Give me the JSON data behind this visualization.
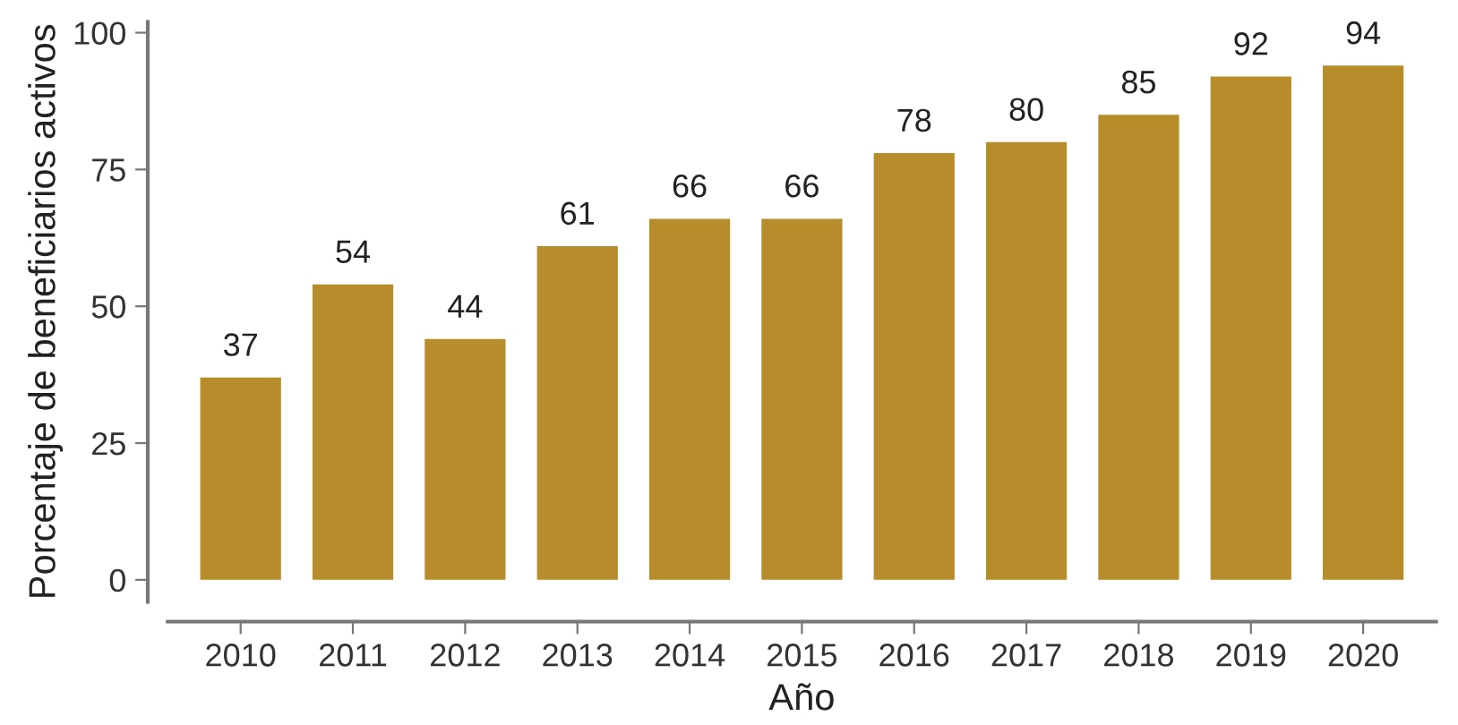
{
  "chart_data": {
    "type": "bar",
    "xlabel": "Año",
    "ylabel": "Porcentaje de beneficiarios activos",
    "categories": [
      "2010",
      "2011",
      "2012",
      "2013",
      "2014",
      "2015",
      "2016",
      "2017",
      "2018",
      "2019",
      "2020"
    ],
    "values": [
      37,
      54,
      44,
      61,
      66,
      66,
      78,
      80,
      85,
      92,
      94
    ],
    "color": "#b68d2a",
    "ylim": [
      -4,
      102
    ],
    "yticks": [
      0,
      25,
      50,
      75,
      100
    ],
    "data_labels": true,
    "grid": false,
    "legend": false
  }
}
